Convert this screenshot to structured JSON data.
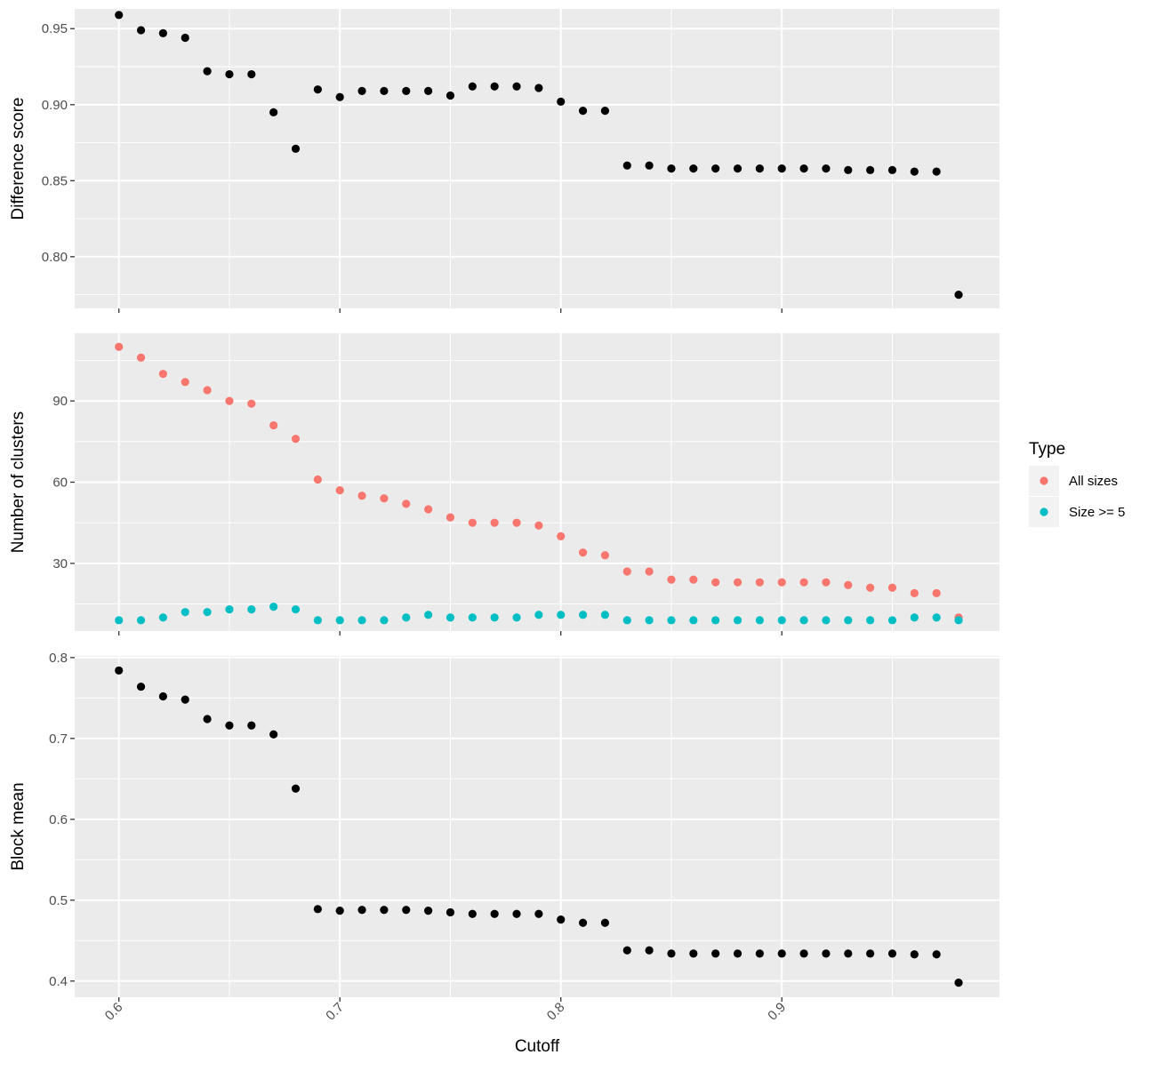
{
  "chart_data": {
    "type": "scatter",
    "xlabel": "Cutoff",
    "x_ticks": [
      "0.6",
      "0.7",
      "0.8",
      "0.9"
    ],
    "x_tick_values": [
      0.6,
      0.7,
      0.8,
      0.9
    ],
    "xlim": [
      0.58,
      0.9985
    ],
    "grid": true,
    "legend": {
      "title": "Type",
      "position": "right",
      "entries": [
        {
          "label": "All sizes",
          "color": "#f8766d"
        },
        {
          "label": "Size >= 5",
          "color": "#00bfc4"
        }
      ]
    },
    "panels": [
      {
        "ylabel": "Difference score",
        "ylim": [
          0.766,
          0.963
        ],
        "y_ticks": [
          "0.80",
          "0.85",
          "0.90",
          "0.95"
        ],
        "y_tick_values": [
          0.8,
          0.85,
          0.9,
          0.95
        ],
        "series": [
          {
            "color": "#000000",
            "x": [
              0.6,
              0.61,
              0.62,
              0.63,
              0.64,
              0.65,
              0.66,
              0.67,
              0.68,
              0.69,
              0.7,
              0.71,
              0.72,
              0.73,
              0.74,
              0.75,
              0.76,
              0.77,
              0.78,
              0.79,
              0.8,
              0.81,
              0.82,
              0.83,
              0.84,
              0.85,
              0.86,
              0.87,
              0.88,
              0.89,
              0.9,
              0.91,
              0.92,
              0.93,
              0.94,
              0.95,
              0.96,
              0.97,
              0.98
            ],
            "y": [
              0.959,
              0.949,
              0.947,
              0.944,
              0.922,
              0.92,
              0.92,
              0.895,
              0.871,
              0.91,
              0.905,
              0.909,
              0.909,
              0.909,
              0.909,
              0.906,
              0.912,
              0.912,
              0.912,
              0.911,
              0.902,
              0.896,
              0.896,
              0.86,
              0.86,
              0.858,
              0.858,
              0.858,
              0.858,
              0.858,
              0.858,
              0.858,
              0.858,
              0.857,
              0.857,
              0.857,
              0.856,
              0.856,
              0.775
            ]
          }
        ]
      },
      {
        "ylabel": "Number of clusters",
        "ylim": [
          5,
          115
        ],
        "y_ticks": [
          "30",
          "60",
          "90"
        ],
        "y_tick_values": [
          30,
          60,
          90
        ],
        "series": [
          {
            "name": "All sizes",
            "color": "#f8766d",
            "x": [
              0.6,
              0.61,
              0.62,
              0.63,
              0.64,
              0.65,
              0.66,
              0.67,
              0.68,
              0.69,
              0.7,
              0.71,
              0.72,
              0.73,
              0.74,
              0.75,
              0.76,
              0.77,
              0.78,
              0.79,
              0.8,
              0.81,
              0.82,
              0.83,
              0.84,
              0.85,
              0.86,
              0.87,
              0.88,
              0.89,
              0.9,
              0.91,
              0.92,
              0.93,
              0.94,
              0.95,
              0.96,
              0.97,
              0.98
            ],
            "y": [
              110,
              106,
              100,
              97,
              94,
              90,
              89,
              81,
              76,
              61,
              57,
              55,
              54,
              52,
              50,
              47,
              45,
              45,
              45,
              44,
              40,
              34,
              33,
              27,
              27,
              24,
              24,
              23,
              23,
              23,
              23,
              23,
              23,
              22,
              21,
              21,
              19,
              19,
              10
            ]
          },
          {
            "name": "Size >= 5",
            "color": "#00bfc4",
            "x": [
              0.6,
              0.61,
              0.62,
              0.63,
              0.64,
              0.65,
              0.66,
              0.67,
              0.68,
              0.69,
              0.7,
              0.71,
              0.72,
              0.73,
              0.74,
              0.75,
              0.76,
              0.77,
              0.78,
              0.79,
              0.8,
              0.81,
              0.82,
              0.83,
              0.84,
              0.85,
              0.86,
              0.87,
              0.88,
              0.89,
              0.9,
              0.91,
              0.92,
              0.93,
              0.94,
              0.95,
              0.96,
              0.97,
              0.98
            ],
            "y": [
              9,
              9,
              10,
              12,
              12,
              13,
              13,
              14,
              13,
              9,
              9,
              9,
              9,
              10,
              11,
              10,
              10,
              10,
              10,
              11,
              11,
              11,
              11,
              9,
              9,
              9,
              9,
              9,
              9,
              9,
              9,
              9,
              9,
              9,
              9,
              9,
              10,
              10,
              9
            ]
          }
        ]
      },
      {
        "ylabel": "Block mean",
        "ylim": [
          0.38,
          0.802
        ],
        "y_ticks": [
          "0.4",
          "0.5",
          "0.6",
          "0.7",
          "0.8"
        ],
        "y_tick_values": [
          0.4,
          0.5,
          0.6,
          0.7,
          0.8
        ],
        "series": [
          {
            "color": "#000000",
            "x": [
              0.6,
              0.61,
              0.62,
              0.63,
              0.64,
              0.65,
              0.66,
              0.67,
              0.68,
              0.69,
              0.7,
              0.71,
              0.72,
              0.73,
              0.74,
              0.75,
              0.76,
              0.77,
              0.78,
              0.79,
              0.8,
              0.81,
              0.82,
              0.83,
              0.84,
              0.85,
              0.86,
              0.87,
              0.88,
              0.89,
              0.9,
              0.91,
              0.92,
              0.93,
              0.94,
              0.95,
              0.96,
              0.97,
              0.98
            ],
            "y": [
              0.784,
              0.764,
              0.752,
              0.748,
              0.724,
              0.716,
              0.716,
              0.705,
              0.638,
              0.489,
              0.487,
              0.488,
              0.488,
              0.488,
              0.487,
              0.485,
              0.483,
              0.483,
              0.483,
              0.483,
              0.476,
              0.472,
              0.472,
              0.438,
              0.438,
              0.434,
              0.434,
              0.434,
              0.434,
              0.434,
              0.434,
              0.434,
              0.434,
              0.434,
              0.434,
              0.434,
              0.433,
              0.433,
              0.398
            ]
          }
        ]
      }
    ]
  }
}
